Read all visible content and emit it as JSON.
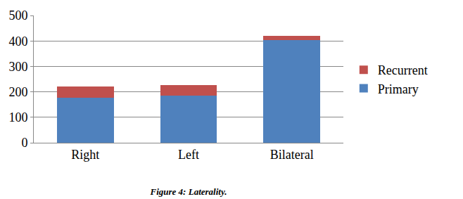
{
  "chart_data": {
    "type": "bar",
    "title": "Figure 4: Laterality.",
    "categories": [
      "Right",
      "Left",
      "Bilateral"
    ],
    "series": [
      {
        "name": "Primary",
        "color": "#4f81bd",
        "values": [
          178,
          185,
          403
        ]
      },
      {
        "name": "Recurrent",
        "color": "#c0504d",
        "values": [
          42,
          41,
          17
        ]
      }
    ],
    "stacked": true,
    "ylim": [
      0,
      500
    ],
    "yticks": [
      0,
      100,
      200,
      300,
      400,
      500
    ],
    "grid": true,
    "legend": "right"
  }
}
